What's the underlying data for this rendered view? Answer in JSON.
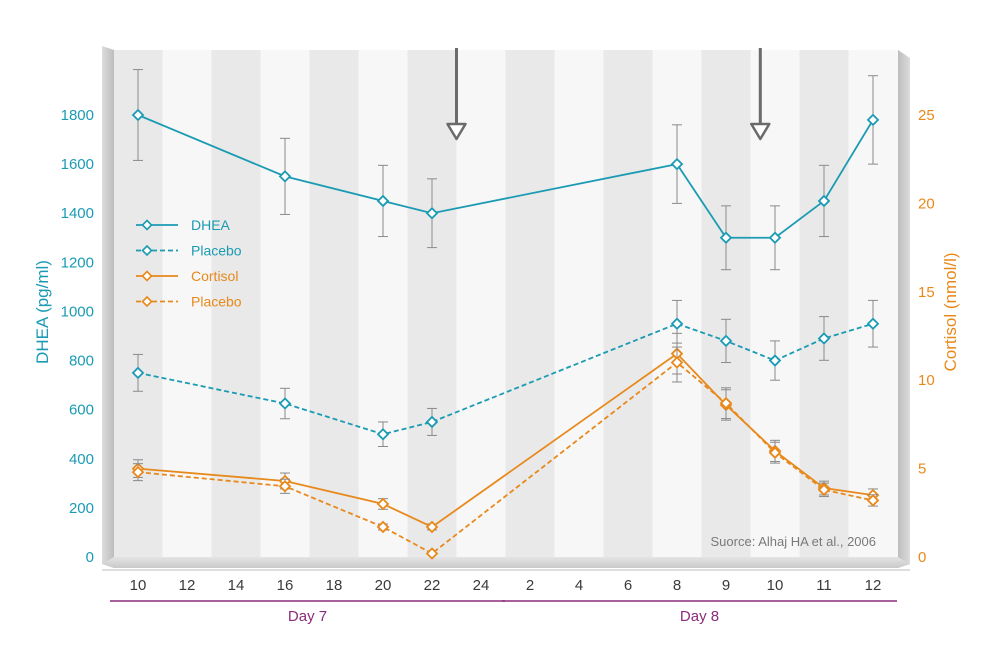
{
  "chart_data": {
    "type": "line",
    "y_left": {
      "label": "DHEA (pg/ml)",
      "ticks": [
        0,
        200,
        400,
        600,
        800,
        1000,
        1200,
        1400,
        1600,
        1800
      ],
      "range": [
        0,
        1800
      ],
      "color": "#1a9bb3"
    },
    "y_right": {
      "label": "Cortisol (nmol/l)",
      "ticks": [
        0,
        5,
        10,
        15,
        20,
        25
      ],
      "range": [
        0,
        25
      ],
      "color": "#e8891b"
    },
    "x_ticks": [
      "10",
      "12",
      "14",
      "16",
      "18",
      "20",
      "22",
      "24",
      "2",
      "4",
      "6",
      "8",
      "9",
      "10",
      "11",
      "12"
    ],
    "day_groups": [
      {
        "label": "Day 7",
        "from_index": 0,
        "to_index": 7
      },
      {
        "label": "Day 8",
        "from_index": 8,
        "to_index": 15
      }
    ],
    "arrows_at_index": [
      6.5,
      12.7
    ],
    "series": [
      {
        "name": "DHEA",
        "axis": "left",
        "color": "#1a9bb3",
        "dashed": false,
        "points": [
          {
            "i": 0,
            "y": 1800,
            "err": 185
          },
          {
            "i": 3,
            "y": 1550,
            "err": 155
          },
          {
            "i": 5,
            "y": 1450,
            "err": 145
          },
          {
            "i": 6,
            "y": 1400,
            "err": 140
          },
          {
            "i": 11,
            "y": 1600,
            "err": 160
          },
          {
            "i": 12,
            "y": 1300,
            "err": 130
          },
          {
            "i": 13,
            "y": 1300,
            "err": 130
          },
          {
            "i": 14,
            "y": 1450,
            "err": 145
          },
          {
            "i": 15,
            "y": 1780,
            "err": 180
          }
        ]
      },
      {
        "name": "Placebo",
        "axis": "left",
        "color": "#1a9bb3",
        "dashed": true,
        "points": [
          {
            "i": 0,
            "y": 750,
            "err": 75
          },
          {
            "i": 3,
            "y": 625,
            "err": 62
          },
          {
            "i": 5,
            "y": 500,
            "err": 50
          },
          {
            "i": 6,
            "y": 550,
            "err": 55
          },
          {
            "i": 11,
            "y": 950,
            "err": 95
          },
          {
            "i": 12,
            "y": 880,
            "err": 88
          },
          {
            "i": 13,
            "y": 800,
            "err": 80
          },
          {
            "i": 14,
            "y": 890,
            "err": 89
          },
          {
            "i": 15,
            "y": 950,
            "err": 95
          }
        ]
      },
      {
        "name": "Cortisol",
        "axis": "right",
        "color": "#e8891b",
        "dashed": false,
        "points": [
          {
            "i": 0,
            "y": 5.0,
            "err": 0.5
          },
          {
            "i": 3,
            "y": 4.3,
            "err": 0.45
          },
          {
            "i": 5,
            "y": 3.0,
            "err": 0.3
          },
          {
            "i": 6,
            "y": 1.7,
            "err": 0.17
          },
          {
            "i": 11,
            "y": 11.5,
            "err": 1.15
          },
          {
            "i": 12,
            "y": 8.6,
            "err": 0.86
          },
          {
            "i": 13,
            "y": 6.0,
            "err": 0.6
          },
          {
            "i": 14,
            "y": 3.9,
            "err": 0.39
          },
          {
            "i": 15,
            "y": 3.5,
            "err": 0.35
          }
        ]
      },
      {
        "name": "Placebo",
        "axis": "right",
        "color": "#e8891b",
        "dashed": true,
        "points": [
          {
            "i": 0,
            "y": 4.8,
            "err": 0.48
          },
          {
            "i": 3,
            "y": 4.0,
            "err": 0.4
          },
          {
            "i": 5,
            "y": 1.7,
            "err": 0.17
          },
          {
            "i": 6,
            "y": 0.2,
            "err": 0.05
          },
          {
            "i": 11,
            "y": 11.0,
            "err": 1.1
          },
          {
            "i": 12,
            "y": 8.7,
            "err": 0.87
          },
          {
            "i": 13,
            "y": 5.9,
            "err": 0.59
          },
          {
            "i": 14,
            "y": 3.8,
            "err": 0.38
          },
          {
            "i": 15,
            "y": 3.2,
            "err": 0.32
          }
        ]
      }
    ],
    "legend": {
      "position": "left"
    },
    "source_note": "Suorce: Alhaj HA et al., 2006",
    "grid": "alternating-column-shading"
  }
}
